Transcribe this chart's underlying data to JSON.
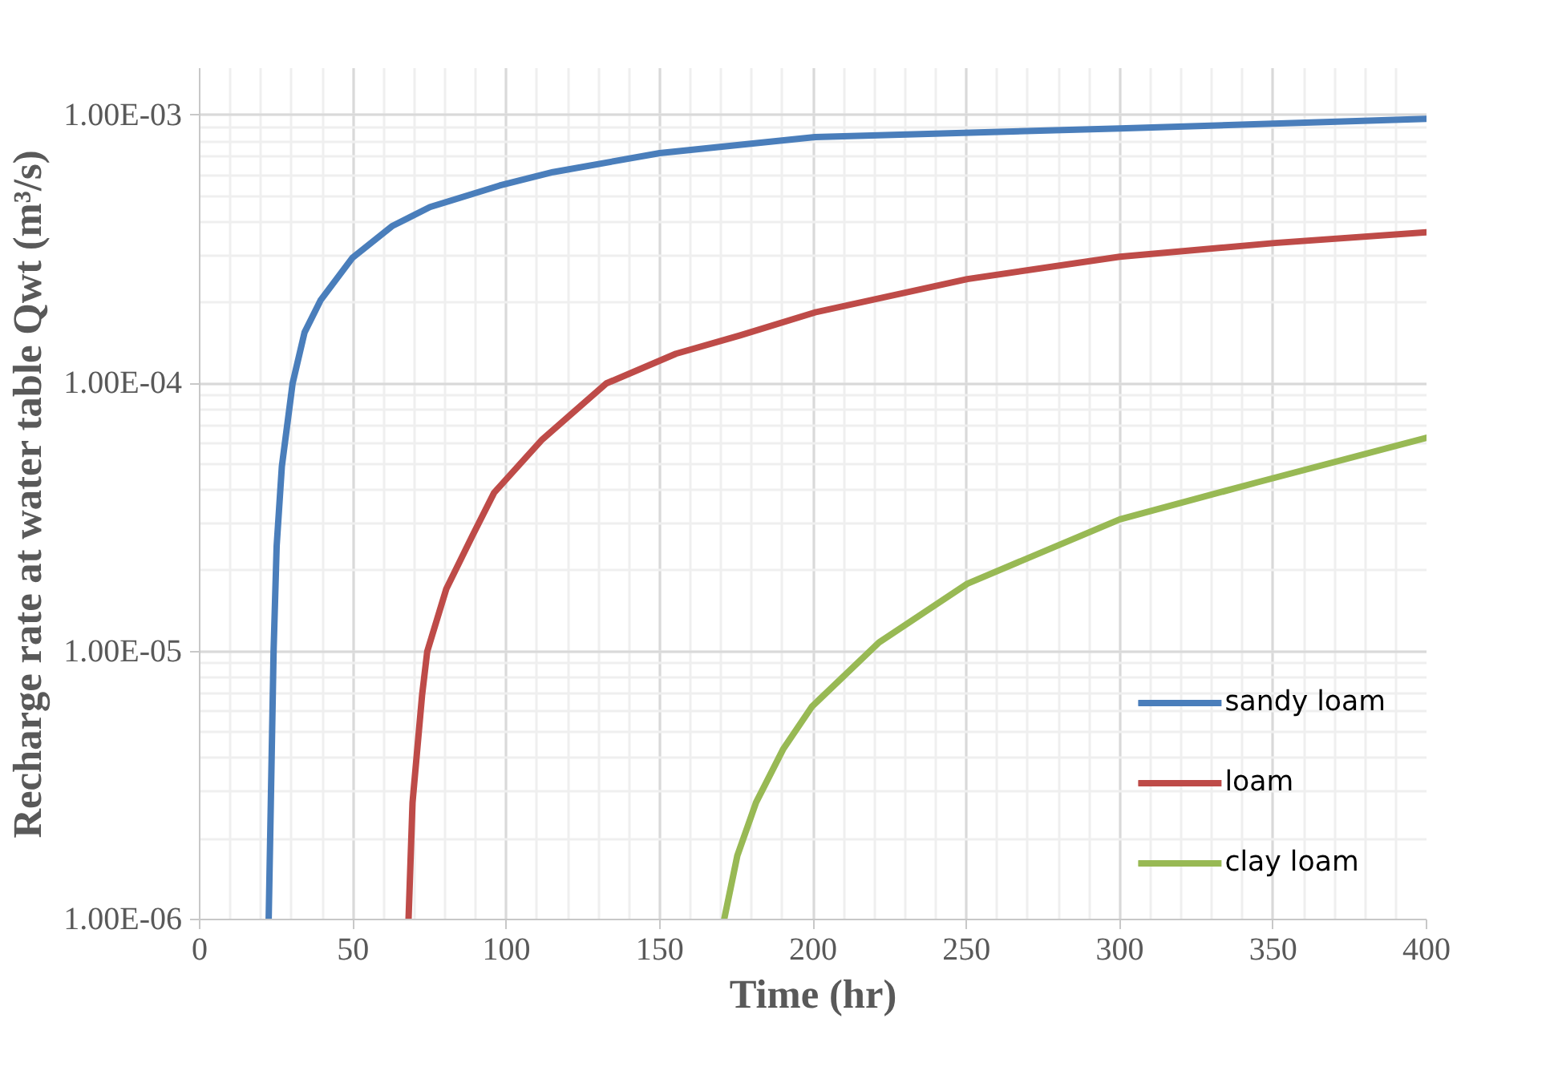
{
  "chart_data": {
    "type": "line",
    "xlabel": "Time (hr)",
    "ylabel": "Recharge rate at water table Qwt (m³/s)",
    "xlim": [
      0,
      400
    ],
    "xticks": [
      0,
      50,
      100,
      150,
      200,
      250,
      300,
      350,
      400
    ],
    "ylim": [
      1e-06,
      0.0015
    ],
    "yticks": [
      {
        "value": 1e-06,
        "label": "1.00E-06"
      },
      {
        "value": 1e-05,
        "label": "1.00E-05"
      },
      {
        "value": 0.0001,
        "label": "1.00E-04"
      },
      {
        "value": 0.001,
        "label": "1.00E-03"
      }
    ],
    "log": "y",
    "grid": true,
    "legend": "bottom right",
    "marker": "none",
    "line_style": "solid",
    "series": [
      {
        "name": "sandy loam",
        "color": "#4a7ebb",
        "x": [
          22.5,
          23.2,
          24.1,
          25.1,
          26.8,
          30.3,
          34.2,
          39.4,
          49.8,
          62.9,
          75.1,
          97.8,
          115.2,
          150,
          200.6,
          300,
          400
        ],
        "values": [
          1e-06,
          2.73e-06,
          1e-05,
          2.47e-05,
          4.9e-05,
          0.0001,
          0.000155,
          0.000204,
          0.000294,
          0.000387,
          0.000455,
          0.000547,
          0.000614,
          0.000723,
          0.00083,
          0.000894,
          0.00097
        ]
      },
      {
        "name": "loam",
        "color": "#be4b48",
        "x": [
          68.1,
          69.4,
          72.5,
          74.2,
          80.4,
          89.0,
          96.0,
          111.7,
          132.6,
          155.3,
          176.2,
          200.6,
          250.3,
          300,
          350.5,
          400
        ],
        "values": [
          1e-06,
          2.73e-06,
          6.84e-06,
          1e-05,
          1.71e-05,
          2.71e-05,
          3.91e-05,
          6.18e-05,
          0.0001,
          0.000129,
          0.000151,
          0.000184,
          0.000245,
          0.000297,
          0.000334,
          0.000366
        ]
      },
      {
        "name": "clay loam",
        "color": "#98b954",
        "x": [
          171,
          175.3,
          181.4,
          190.2,
          199.7,
          221.5,
          250.3,
          300,
          345,
          400
        ],
        "values": [
          1e-06,
          1.73e-06,
          2.73e-06,
          4.31e-06,
          6.24e-06,
          1.08e-05,
          1.79e-05,
          3.11e-05,
          4.28e-05,
          6.27e-05
        ]
      }
    ]
  }
}
